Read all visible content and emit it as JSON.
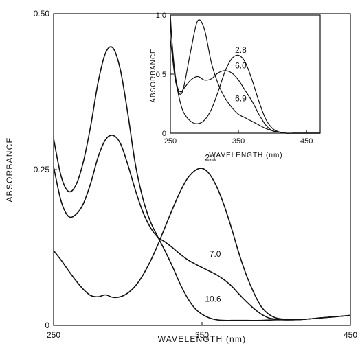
{
  "chart_data": [
    {
      "type": "line",
      "title": "",
      "xlabel": "WAVELENGTH (nm)",
      "ylabel": "ABSORBANCE",
      "xlim": [
        250,
        450
      ],
      "ylim": [
        0,
        0.5
      ],
      "x_ticks": [
        "250",
        "350",
        "450"
      ],
      "y_ticks": [
        "0",
        "0.25",
        "0.50"
      ],
      "grid": false,
      "series": [
        {
          "name": "2.1",
          "x": [
            250,
            255,
            260,
            265,
            270,
            275,
            280,
            285,
            290,
            295,
            300,
            305,
            310,
            315,
            320,
            325,
            330,
            335,
            340,
            345,
            350,
            355,
            360,
            365,
            370,
            375,
            380,
            385,
            390,
            395,
            400,
            405,
            410,
            420,
            430,
            440,
            450
          ],
          "y": [
            0.12,
            0.105,
            0.088,
            0.072,
            0.058,
            0.048,
            0.046,
            0.049,
            0.045,
            0.046,
            0.052,
            0.063,
            0.08,
            0.102,
            0.128,
            0.157,
            0.186,
            0.213,
            0.235,
            0.248,
            0.252,
            0.243,
            0.222,
            0.192,
            0.155,
            0.115,
            0.08,
            0.052,
            0.03,
            0.018,
            0.012,
            0.01,
            0.009,
            0.01,
            0.012,
            0.014,
            0.016
          ]
        },
        {
          "name": "7.0",
          "x": [
            250,
            255,
            260,
            265,
            270,
            275,
            280,
            285,
            290,
            295,
            300,
            305,
            310,
            315,
            320,
            325,
            330,
            335,
            340,
            345,
            350,
            355,
            360,
            365,
            370,
            375,
            380,
            385,
            390,
            395,
            400,
            405,
            410,
            420,
            430,
            440,
            450
          ],
          "y": [
            0.255,
            0.2,
            0.175,
            0.178,
            0.195,
            0.228,
            0.27,
            0.298,
            0.305,
            0.292,
            0.258,
            0.218,
            0.183,
            0.158,
            0.142,
            0.134,
            0.125,
            0.115,
            0.106,
            0.099,
            0.093,
            0.087,
            0.081,
            0.073,
            0.063,
            0.05,
            0.038,
            0.027,
            0.018,
            0.012,
            0.01,
            0.009,
            0.009,
            0.01,
            0.012,
            0.014,
            0.016
          ]
        },
        {
          "name": "10.6",
          "x": [
            250,
            255,
            260,
            265,
            270,
            275,
            280,
            285,
            290,
            295,
            300,
            305,
            310,
            315,
            320,
            325,
            330,
            335,
            340,
            345,
            350,
            355,
            360,
            365,
            370,
            380,
            390,
            400,
            410,
            420,
            430,
            440,
            450
          ],
          "y": [
            0.3,
            0.24,
            0.215,
            0.225,
            0.262,
            0.32,
            0.39,
            0.437,
            0.445,
            0.41,
            0.34,
            0.26,
            0.205,
            0.168,
            0.143,
            0.12,
            0.095,
            0.068,
            0.045,
            0.028,
            0.018,
            0.012,
            0.009,
            0.008,
            0.008,
            0.008,
            0.008,
            0.009,
            0.009,
            0.01,
            0.012,
            0.014,
            0.016
          ]
        }
      ]
    },
    {
      "type": "line",
      "title": "",
      "xlabel": "WAVELENGTH (nm)",
      "ylabel": "ABSORBANCE",
      "xlim": [
        250,
        470
      ],
      "ylim": [
        0,
        1.0
      ],
      "x_ticks": [
        "250",
        "350",
        "450"
      ],
      "y_ticks": [
        "0",
        "0.5",
        "1.0"
      ],
      "grid": false,
      "series": [
        {
          "name": "2.8",
          "x": [
            250,
            255,
            260,
            265,
            270,
            280,
            290,
            300,
            310,
            320,
            330,
            340,
            350,
            360,
            370,
            380,
            390,
            400,
            410,
            420,
            430,
            440,
            450,
            460,
            470
          ],
          "y": [
            0.8,
            0.55,
            0.38,
            0.25,
            0.17,
            0.1,
            0.08,
            0.11,
            0.2,
            0.35,
            0.52,
            0.63,
            0.66,
            0.6,
            0.45,
            0.27,
            0.12,
            0.04,
            0.01,
            0.0,
            0.0,
            0.0,
            0.0,
            0.0,
            0.0
          ]
        },
        {
          "name": "6.0",
          "x": [
            250,
            255,
            260,
            265,
            270,
            280,
            290,
            300,
            310,
            320,
            330,
            340,
            350,
            360,
            370,
            380,
            390,
            400,
            410,
            420,
            430,
            440,
            450,
            460,
            470
          ],
          "y": [
            0.95,
            0.6,
            0.4,
            0.35,
            0.38,
            0.45,
            0.48,
            0.45,
            0.46,
            0.51,
            0.53,
            0.51,
            0.45,
            0.36,
            0.27,
            0.16,
            0.07,
            0.02,
            0.01,
            0.0,
            0.0,
            0.0,
            0.0,
            0.0,
            0.0
          ]
        },
        {
          "name": "6.9",
          "x": [
            250,
            255,
            260,
            265,
            270,
            280,
            290,
            300,
            310,
            320,
            330,
            340,
            350,
            360,
            370,
            380,
            390,
            400,
            410,
            420,
            430,
            440,
            450,
            460,
            470
          ],
          "y": [
            1.0,
            0.55,
            0.38,
            0.33,
            0.4,
            0.7,
            0.95,
            0.88,
            0.6,
            0.42,
            0.3,
            0.22,
            0.16,
            0.13,
            0.1,
            0.07,
            0.04,
            0.02,
            0.01,
            0.0,
            0.0,
            0.0,
            0.0,
            0.0,
            0.0
          ]
        }
      ]
    }
  ]
}
